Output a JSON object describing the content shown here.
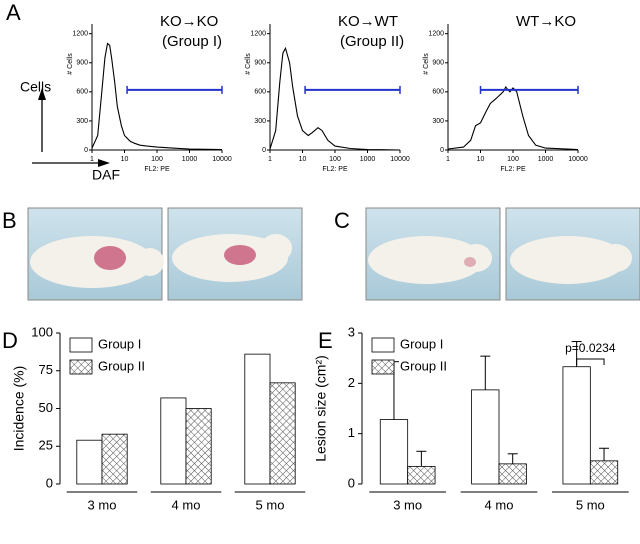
{
  "panel_labels": [
    "A",
    "B",
    "C",
    "D",
    "E"
  ],
  "axis_key": {
    "y": "Cells",
    "x": "DAF"
  },
  "chart_data": [
    {
      "type": "line",
      "title": "KO→KO",
      "subtitle": "(Group I)",
      "x": [
        1,
        1.5,
        2,
        2.5,
        3,
        3.5,
        4,
        5,
        6,
        8,
        10,
        15,
        20,
        30,
        50,
        100,
        300,
        1000,
        10000
      ],
      "series": [
        {
          "color": "#000000",
          "values": [
            20,
            150,
            600,
            950,
            1100,
            1080,
            950,
            700,
            450,
            250,
            150,
            90,
            70,
            50,
            40,
            30,
            20,
            10,
            5
          ]
        }
      ],
      "xlim": [
        1,
        10000
      ],
      "xticks": [
        1,
        10,
        100,
        1000,
        10000
      ],
      "xlog": true,
      "ylim": [
        0,
        1300
      ],
      "yticks": [
        0,
        300,
        600,
        900,
        1200
      ],
      "xlabel": "FL2: PE",
      "ylabel": "# Cells",
      "gate": {
        "x": [
          12,
          10000
        ],
        "y": 620,
        "color": "#2233cc"
      }
    },
    {
      "type": "line",
      "title": "KO→WT",
      "subtitle": "(Group II)",
      "x": [
        1,
        1.5,
        2,
        2.5,
        3,
        4,
        5,
        7,
        10,
        15,
        20,
        30,
        40,
        60,
        100,
        300,
        1000,
        10000
      ],
      "series": [
        {
          "color": "#000000",
          "values": [
            10,
            200,
            700,
            1000,
            1050,
            900,
            650,
            350,
            200,
            150,
            180,
            230,
            200,
            100,
            40,
            15,
            5,
            0
          ]
        }
      ],
      "xlim": [
        1,
        10000
      ],
      "xticks": [
        1,
        10,
        100,
        1000,
        10000
      ],
      "xlog": true,
      "ylim": [
        0,
        1300
      ],
      "yticks": [
        0,
        300,
        600,
        900,
        1200
      ],
      "xlabel": "FL2: PE",
      "ylabel": "# Cells",
      "gate": {
        "x": [
          12,
          10000
        ],
        "y": 620,
        "color": "#2233cc"
      }
    },
    {
      "type": "line",
      "title": "WT→KO",
      "x": [
        1,
        3,
        5,
        7,
        10,
        15,
        20,
        30,
        50,
        60,
        70,
        80,
        100,
        130,
        200,
        300,
        500,
        1000,
        10000
      ],
      "series": [
        {
          "color": "#000000",
          "values": [
            10,
            30,
            100,
            250,
            280,
            400,
            480,
            530,
            600,
            650,
            620,
            600,
            640,
            600,
            350,
            150,
            50,
            20,
            5
          ]
        }
      ],
      "xlim": [
        1,
        10000
      ],
      "xticks": [
        1,
        10,
        100,
        1000,
        10000
      ],
      "xlog": true,
      "ylim": [
        0,
        1300
      ],
      "yticks": [
        0,
        300,
        600,
        900,
        1200
      ],
      "xlabel": "FL2: PE",
      "ylabel": "# Cells",
      "gate": {
        "x": [
          10,
          10000
        ],
        "y": 620,
        "color": "#2233cc"
      }
    },
    {
      "type": "bar",
      "categories": [
        "3 mo",
        "4 mo",
        "5 mo"
      ],
      "series": [
        {
          "name": "Group I",
          "color": "#ffffff",
          "values": [
            29,
            57,
            86
          ]
        },
        {
          "name": "Group II",
          "color": "#ffffff",
          "hatch": true,
          "values": [
            33,
            50,
            67
          ]
        }
      ],
      "ylim": [
        0,
        100
      ],
      "yticks": [
        0,
        25,
        50,
        75,
        100
      ],
      "ylabel": "Incidence (%)"
    },
    {
      "type": "bar",
      "categories": [
        "3 mo",
        "4 mo",
        "5 mo"
      ],
      "series": [
        {
          "name": "Group I",
          "color": "#ffffff",
          "values": [
            1.28,
            1.87,
            2.33
          ],
          "errors": [
            1.15,
            0.67,
            0.5
          ]
        },
        {
          "name": "Group II",
          "color": "#ffffff",
          "hatch": true,
          "values": [
            0.35,
            0.4,
            0.46
          ],
          "errors": [
            0.3,
            0.2,
            0.25
          ]
        }
      ],
      "ylim": [
        0,
        3
      ],
      "yticks": [
        0,
        1,
        2,
        3
      ],
      "ylabel": "Lesion size (cm²)",
      "annotation": "p=0.0234"
    }
  ]
}
